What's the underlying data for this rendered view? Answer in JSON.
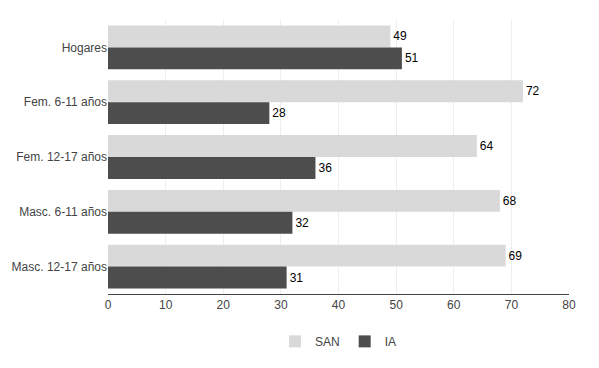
{
  "chart_data": {
    "type": "bar",
    "orientation": "horizontal",
    "categories": [
      "Hogares",
      "Fem. 6-11 años",
      "Fem. 12-17 años",
      "Masc. 6-11 años",
      "Masc. 12-17 años"
    ],
    "series": [
      {
        "name": "SAN",
        "color": "#d9d9d9",
        "values": [
          49,
          72,
          64,
          68,
          69
        ]
      },
      {
        "name": "IA",
        "color": "#4d4d4d",
        "values": [
          51,
          28,
          36,
          32,
          31
        ]
      }
    ],
    "xlim": [
      0,
      80
    ],
    "xticks": [
      0,
      10,
      20,
      30,
      40,
      50,
      60,
      70,
      80
    ],
    "grid": true,
    "data_labels": true,
    "legend": "bottom"
  }
}
